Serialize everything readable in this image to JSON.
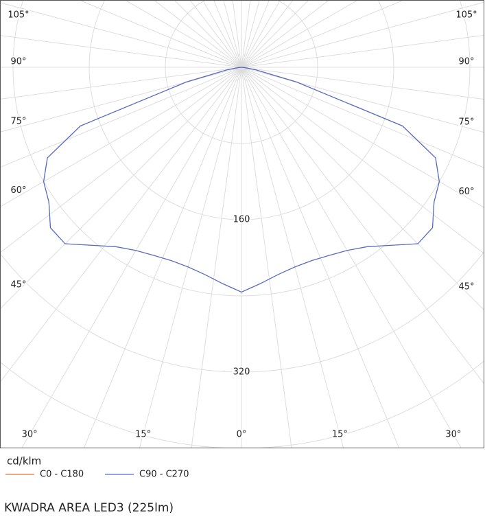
{
  "chart_data": {
    "type": "polar",
    "title": "KWADRA AREA LED3 (225lm)",
    "unit_label": "cd/klm",
    "x": [
      0,
      5,
      10,
      15,
      20,
      25,
      30,
      35,
      40,
      45,
      50,
      55,
      60,
      65,
      70,
      75,
      80,
      85,
      90
    ],
    "series": [
      {
        "name": "C0 - C180",
        "color": "#e8743b",
        "values": [
          236,
          228,
          221,
          217,
          216,
          218,
          222,
          230,
          244,
          262,
          262,
          247,
          240,
          225,
          180,
          60,
          15,
          3,
          0
        ]
      },
      {
        "name": "C90 - C270",
        "color": "#4a6fd6",
        "values": [
          236,
          228,
          221,
          217,
          216,
          218,
          222,
          230,
          244,
          262,
          262,
          247,
          240,
          225,
          180,
          60,
          15,
          3,
          0
        ]
      }
    ],
    "rlim": [
      0,
      480
    ],
    "rticks": [
      160,
      320
    ],
    "angle_ticks": [
      {
        "value": 0,
        "label": "0°"
      },
      {
        "value": 15,
        "label": "15°"
      },
      {
        "value": 30,
        "label": "30°"
      },
      {
        "value": 45,
        "label": "45°"
      },
      {
        "value": 60,
        "label": "60°"
      },
      {
        "value": 75,
        "label": "75°"
      },
      {
        "value": 90,
        "label": "90°"
      },
      {
        "value": 105,
        "label": "105°"
      }
    ],
    "grid": true
  }
}
